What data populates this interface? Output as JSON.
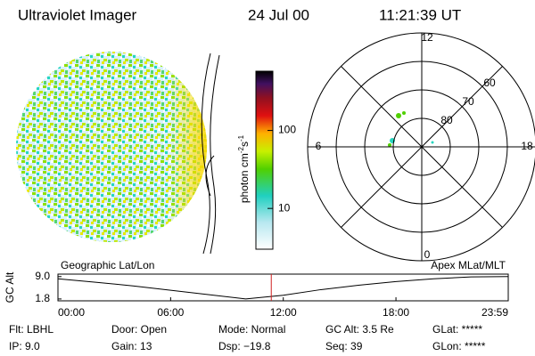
{
  "header": {
    "title": "Ultraviolet Imager",
    "date": "24 Jul 00",
    "time": "11:21:39 UT"
  },
  "colorbar": {
    "label": [
      "photon cm",
      "-2",
      "s",
      "-1"
    ],
    "log": true,
    "ylim": [
      3,
      575
    ],
    "yticks": [
      10,
      100
    ]
  },
  "polar": {
    "rlim": [
      50,
      90
    ],
    "lat_ticks": [
      60,
      70,
      80
    ],
    "mlt_ticks": [
      12,
      18,
      6,
      0
    ]
  },
  "altitude": {
    "ylabel": "GC Alt",
    "left_label": "Geographic Lat/Lon",
    "right_label": "Apex MLat/MLT",
    "xlim": [
      0,
      23.98
    ],
    "ylim": [
      1.2,
      9.8
    ],
    "xticks": [
      {
        "value": 0,
        "label": "00:00"
      },
      {
        "value": 6,
        "label": "06:00"
      },
      {
        "value": 12,
        "label": "12:00"
      },
      {
        "value": 18,
        "label": "18:00"
      },
      {
        "value": 23.98,
        "label": "23:59"
      }
    ],
    "yticks": [
      {
        "value": 9,
        "label": "9.0"
      },
      {
        "value": 1.8,
        "label": "1.8"
      }
    ],
    "x": [
      0,
      2,
      4,
      6,
      8,
      10,
      12,
      14,
      16,
      18,
      20,
      22,
      23.98
    ],
    "values": [
      8.3,
      7.2,
      6.0,
      4.6,
      3.2,
      1.8,
      3.0,
      4.8,
      6.2,
      7.4,
      8.3,
      8.9,
      9.0
    ],
    "current_time": 11.36
  },
  "footer": {
    "rows": [
      [
        "Flt: LBHL",
        "Door: Open",
        "Mode: Normal",
        "GC Alt: 3.5 Re",
        "GLat: *****"
      ],
      [
        "IP: 9.0",
        "Gain: 13",
        "Dsp: −19.8",
        "Seq: 39",
        "GLon: *****"
      ]
    ]
  }
}
